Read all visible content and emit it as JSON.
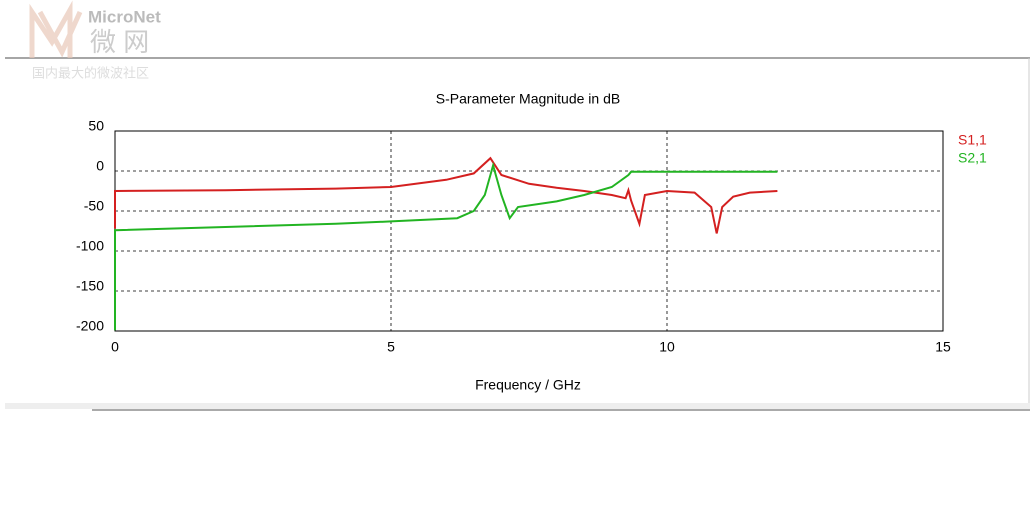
{
  "watermark": {
    "brand": "MicroNet",
    "brand_cn": "微 网",
    "slogan": "国内最大的微波社区"
  },
  "chart_data": {
    "type": "line",
    "title": "S-Parameter Magnitude in dB",
    "x_label": "Frequency / GHz",
    "xlim": [
      0,
      15
    ],
    "xticks": [
      0,
      5,
      10,
      15
    ],
    "ylim": [
      -200,
      50
    ],
    "yticks": [
      50,
      0,
      -50,
      -100,
      -150,
      -200
    ],
    "grid": true,
    "legend": "right",
    "series": [
      {
        "name": "S1,1",
        "color": "#d42020",
        "x": [
          0,
          0,
          2,
          4,
          5,
          6,
          6.5,
          6.8,
          7.0,
          7.5,
          8,
          8.5,
          9,
          9.25,
          9.3,
          9.35,
          9.5,
          9.6,
          10,
          10.5,
          10.8,
          10.9,
          11.0,
          11.2,
          11.5,
          12
        ],
        "values": [
          -72,
          -25,
          -24,
          -22,
          -20,
          -11,
          -3,
          16,
          -5,
          -16,
          -21,
          -25,
          -30,
          -34,
          -24,
          -37,
          -66,
          -30,
          -25,
          -27,
          -45,
          -78,
          -45,
          -32,
          -27,
          -25
        ]
      },
      {
        "name": "S2,1",
        "color": "#22b422",
        "x": [
          0,
          0,
          2,
          4,
          5,
          6.2,
          6.5,
          6.7,
          6.85,
          7.0,
          7.15,
          7.3,
          8,
          8.5,
          9,
          9.3,
          9.35,
          12
        ],
        "values": [
          -199,
          -74,
          -70,
          -66,
          -63,
          -59,
          -50,
          -30,
          7,
          -30,
          -59,
          -45,
          -38,
          -30,
          -20,
          -5,
          -1,
          -1
        ]
      }
    ]
  }
}
